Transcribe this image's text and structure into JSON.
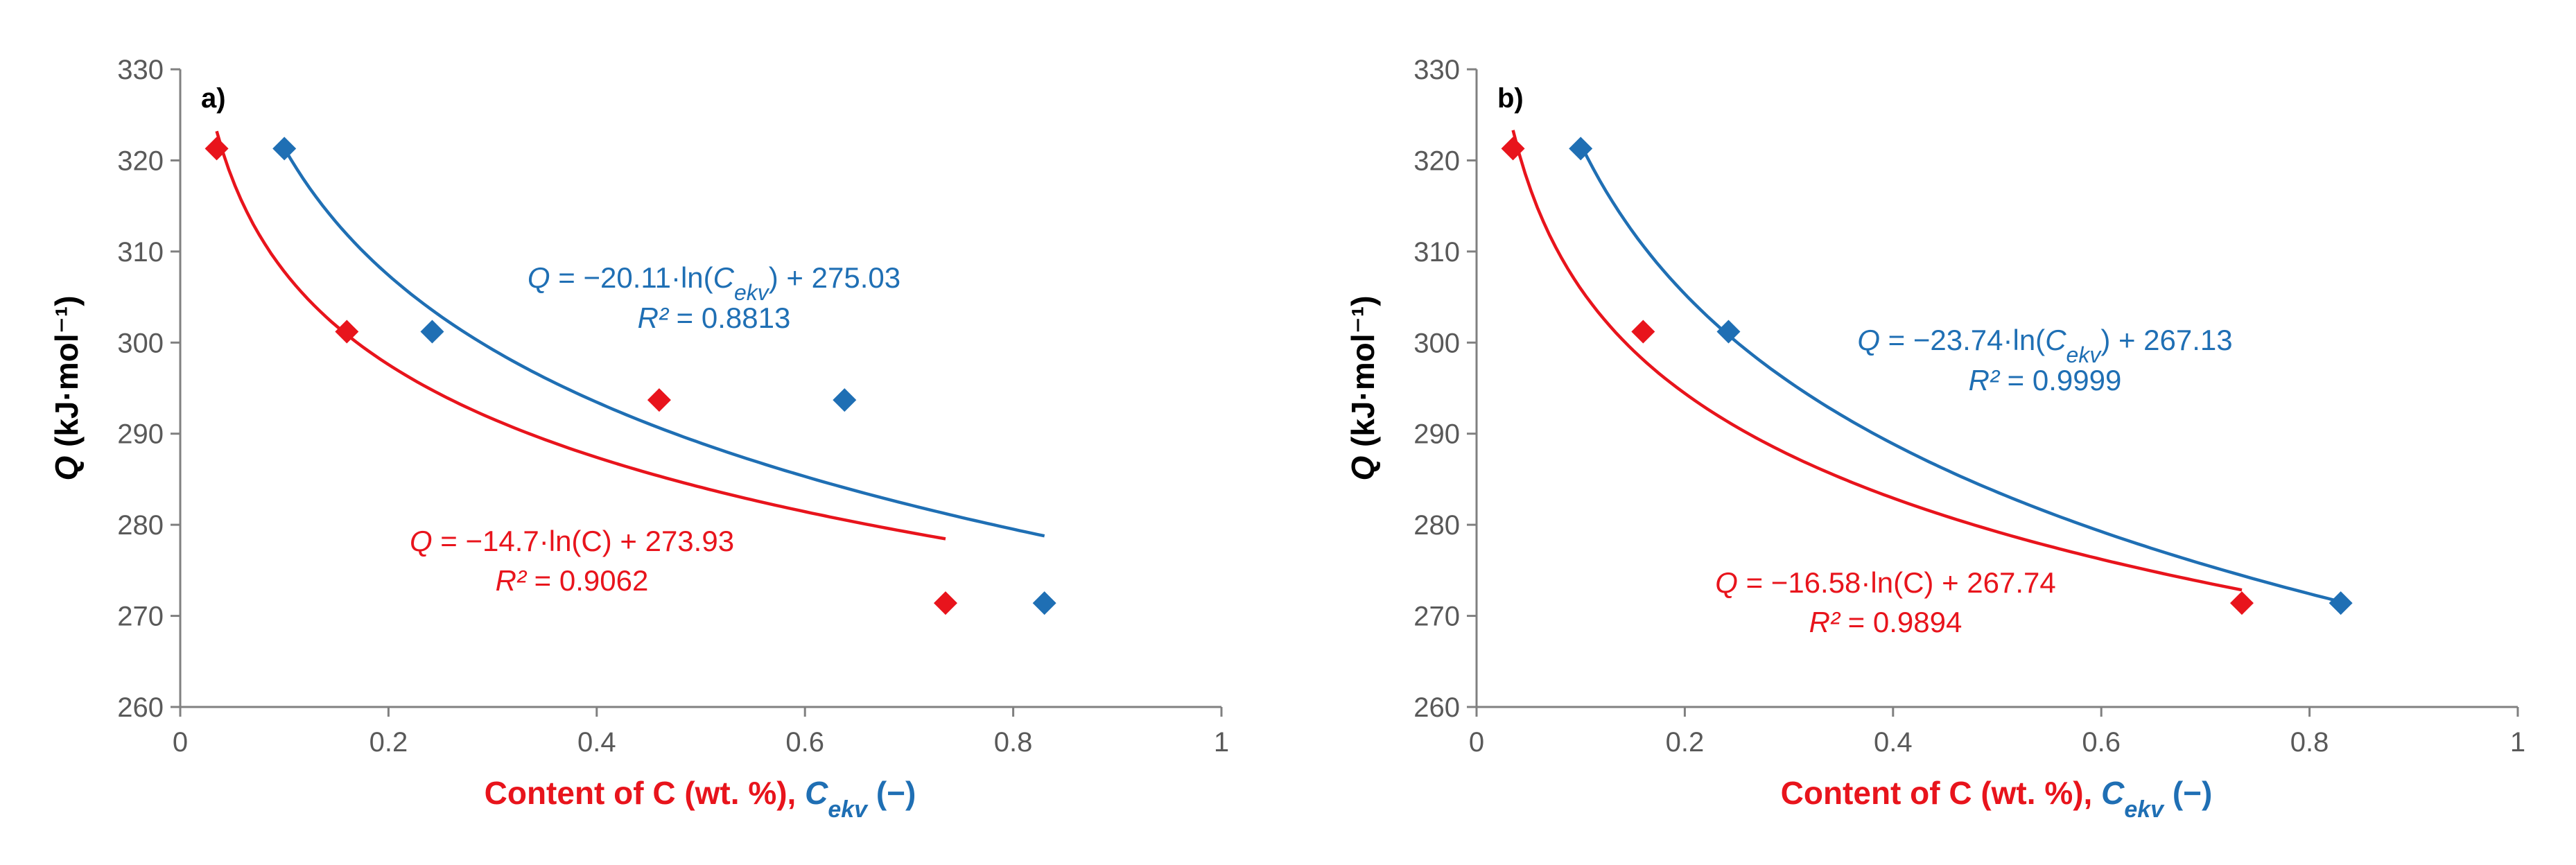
{
  "colors": {
    "red": "#e8141c",
    "blue": "#1f6fb4",
    "axis": "#808080",
    "tick": "#595959"
  },
  "chart_data": [
    {
      "type": "scatter",
      "panel_label": "a)",
      "ylabel": "Q (kJ·mol⁻¹)",
      "ylabel_italic": "Q",
      "ylabel_rest": " (kJ·mol⁻¹)",
      "xlabel_red": "Content of C (wt. %), ",
      "xlabel_blue_italic": "C",
      "xlabel_blue_sub": "ekv",
      "xlabel_blue_rest": " (−)",
      "xlim": [
        0,
        1
      ],
      "ylim": [
        260,
        330
      ],
      "xticks": [
        "0",
        "0.2",
        "0.4",
        "0.6",
        "0.8",
        "1"
      ],
      "yticks": [
        "260",
        "270",
        "280",
        "290",
        "300",
        "310",
        "320",
        "330"
      ],
      "grid": false,
      "series": [
        {
          "name": "C",
          "color": "red",
          "x": [
            0.035,
            0.16,
            0.46,
            0.735
          ],
          "y": [
            321.3,
            301.2,
            293.7,
            271.4
          ],
          "fit": {
            "a": -14.7,
            "b": 273.93,
            "x_from": 0.035,
            "x_to": 0.735
          },
          "eq_prefix": "Q",
          "eq_text": " = −14.7·ln(C) + 273.93",
          "r2_label": "R²",
          "r2_text": " = 0.9062"
        },
        {
          "name": "Cekv",
          "color": "blue",
          "x": [
            0.1,
            0.242,
            0.638,
            0.83
          ],
          "y": [
            321.3,
            301.2,
            293.7,
            271.4
          ],
          "fit": {
            "a": -20.11,
            "b": 275.03,
            "x_from": 0.1,
            "x_to": 0.83
          },
          "eq_prefix": "Q",
          "eq_text_a": " = −20.11·ln(",
          "eq_var": "C",
          "eq_sub": "ekv",
          "eq_text_b": ") + 275.03",
          "r2_label": "R²",
          "r2_text": " = 0.8813"
        }
      ]
    },
    {
      "type": "scatter",
      "panel_label": "b)",
      "ylabel": "Q (kJ·mol⁻¹)",
      "ylabel_italic": "Q",
      "ylabel_rest": " (kJ·mol⁻¹)",
      "xlabel_red": "Content of C (wt. %), ",
      "xlabel_blue_italic": "C",
      "xlabel_blue_sub": "ekv",
      "xlabel_blue_rest": " (−)",
      "xlim": [
        0,
        1
      ],
      "ylim": [
        260,
        330
      ],
      "xticks": [
        "0",
        "0.2",
        "0.4",
        "0.6",
        "0.8",
        "1"
      ],
      "yticks": [
        "260",
        "270",
        "280",
        "290",
        "300",
        "310",
        "320",
        "330"
      ],
      "grid": false,
      "series": [
        {
          "name": "C",
          "color": "red",
          "x": [
            0.035,
            0.16,
            0.735
          ],
          "y": [
            321.3,
            301.2,
            271.4
          ],
          "fit": {
            "a": -16.58,
            "b": 267.74,
            "x_from": 0.035,
            "x_to": 0.735
          },
          "eq_prefix": "Q",
          "eq_text": " = −16.58·ln(C) + 267.74",
          "r2_label": "R²",
          "r2_text": " = 0.9894"
        },
        {
          "name": "Cekv",
          "color": "blue",
          "x": [
            0.1,
            0.242,
            0.83
          ],
          "y": [
            321.3,
            301.2,
            271.4
          ],
          "fit": {
            "a": -23.74,
            "b": 267.13,
            "x_from": 0.1,
            "x_to": 0.83
          },
          "eq_prefix": "Q",
          "eq_text_a": " = −23.74·ln(",
          "eq_var": "C",
          "eq_sub": "ekv",
          "eq_text_b": ") + 267.13",
          "r2_label": "R²",
          "r2_text": " = 0.9999"
        }
      ]
    }
  ]
}
